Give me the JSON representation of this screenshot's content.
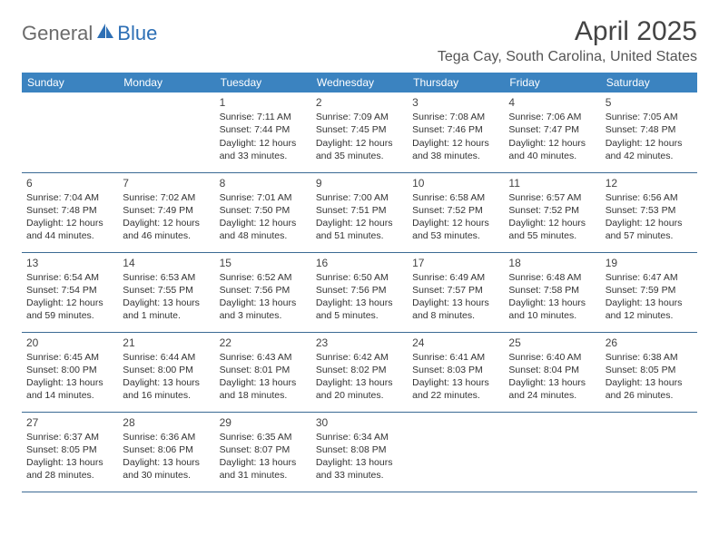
{
  "brand": {
    "text1": "General",
    "text2": "Blue"
  },
  "title": "April 2025",
  "location": "Tega Cay, South Carolina, United States",
  "colors": {
    "header_bg": "#3b83c0",
    "header_text": "#ffffff",
    "rule": "#3b6a94",
    "brand_gray": "#6b6b6b",
    "brand_blue": "#2d6fb5",
    "text": "#333333",
    "background": "#ffffff"
  },
  "typography": {
    "title_fontsize": 30,
    "location_fontsize": 16,
    "dayheader_fontsize": 12,
    "daynum_fontsize": 12,
    "body_fontsize": 10.5,
    "font_family": "Arial"
  },
  "day_headers": [
    "Sunday",
    "Monday",
    "Tuesday",
    "Wednesday",
    "Thursday",
    "Friday",
    "Saturday"
  ],
  "weeks": [
    [
      null,
      null,
      {
        "n": "1",
        "sr": "Sunrise: 7:11 AM",
        "ss": "Sunset: 7:44 PM",
        "d1": "Daylight: 12 hours",
        "d2": "and 33 minutes."
      },
      {
        "n": "2",
        "sr": "Sunrise: 7:09 AM",
        "ss": "Sunset: 7:45 PM",
        "d1": "Daylight: 12 hours",
        "d2": "and 35 minutes."
      },
      {
        "n": "3",
        "sr": "Sunrise: 7:08 AM",
        "ss": "Sunset: 7:46 PM",
        "d1": "Daylight: 12 hours",
        "d2": "and 38 minutes."
      },
      {
        "n": "4",
        "sr": "Sunrise: 7:06 AM",
        "ss": "Sunset: 7:47 PM",
        "d1": "Daylight: 12 hours",
        "d2": "and 40 minutes."
      },
      {
        "n": "5",
        "sr": "Sunrise: 7:05 AM",
        "ss": "Sunset: 7:48 PM",
        "d1": "Daylight: 12 hours",
        "d2": "and 42 minutes."
      }
    ],
    [
      {
        "n": "6",
        "sr": "Sunrise: 7:04 AM",
        "ss": "Sunset: 7:48 PM",
        "d1": "Daylight: 12 hours",
        "d2": "and 44 minutes."
      },
      {
        "n": "7",
        "sr": "Sunrise: 7:02 AM",
        "ss": "Sunset: 7:49 PM",
        "d1": "Daylight: 12 hours",
        "d2": "and 46 minutes."
      },
      {
        "n": "8",
        "sr": "Sunrise: 7:01 AM",
        "ss": "Sunset: 7:50 PM",
        "d1": "Daylight: 12 hours",
        "d2": "and 48 minutes."
      },
      {
        "n": "9",
        "sr": "Sunrise: 7:00 AM",
        "ss": "Sunset: 7:51 PM",
        "d1": "Daylight: 12 hours",
        "d2": "and 51 minutes."
      },
      {
        "n": "10",
        "sr": "Sunrise: 6:58 AM",
        "ss": "Sunset: 7:52 PM",
        "d1": "Daylight: 12 hours",
        "d2": "and 53 minutes."
      },
      {
        "n": "11",
        "sr": "Sunrise: 6:57 AM",
        "ss": "Sunset: 7:52 PM",
        "d1": "Daylight: 12 hours",
        "d2": "and 55 minutes."
      },
      {
        "n": "12",
        "sr": "Sunrise: 6:56 AM",
        "ss": "Sunset: 7:53 PM",
        "d1": "Daylight: 12 hours",
        "d2": "and 57 minutes."
      }
    ],
    [
      {
        "n": "13",
        "sr": "Sunrise: 6:54 AM",
        "ss": "Sunset: 7:54 PM",
        "d1": "Daylight: 12 hours",
        "d2": "and 59 minutes."
      },
      {
        "n": "14",
        "sr": "Sunrise: 6:53 AM",
        "ss": "Sunset: 7:55 PM",
        "d1": "Daylight: 13 hours",
        "d2": "and 1 minute."
      },
      {
        "n": "15",
        "sr": "Sunrise: 6:52 AM",
        "ss": "Sunset: 7:56 PM",
        "d1": "Daylight: 13 hours",
        "d2": "and 3 minutes."
      },
      {
        "n": "16",
        "sr": "Sunrise: 6:50 AM",
        "ss": "Sunset: 7:56 PM",
        "d1": "Daylight: 13 hours",
        "d2": "and 5 minutes."
      },
      {
        "n": "17",
        "sr": "Sunrise: 6:49 AM",
        "ss": "Sunset: 7:57 PM",
        "d1": "Daylight: 13 hours",
        "d2": "and 8 minutes."
      },
      {
        "n": "18",
        "sr": "Sunrise: 6:48 AM",
        "ss": "Sunset: 7:58 PM",
        "d1": "Daylight: 13 hours",
        "d2": "and 10 minutes."
      },
      {
        "n": "19",
        "sr": "Sunrise: 6:47 AM",
        "ss": "Sunset: 7:59 PM",
        "d1": "Daylight: 13 hours",
        "d2": "and 12 minutes."
      }
    ],
    [
      {
        "n": "20",
        "sr": "Sunrise: 6:45 AM",
        "ss": "Sunset: 8:00 PM",
        "d1": "Daylight: 13 hours",
        "d2": "and 14 minutes."
      },
      {
        "n": "21",
        "sr": "Sunrise: 6:44 AM",
        "ss": "Sunset: 8:00 PM",
        "d1": "Daylight: 13 hours",
        "d2": "and 16 minutes."
      },
      {
        "n": "22",
        "sr": "Sunrise: 6:43 AM",
        "ss": "Sunset: 8:01 PM",
        "d1": "Daylight: 13 hours",
        "d2": "and 18 minutes."
      },
      {
        "n": "23",
        "sr": "Sunrise: 6:42 AM",
        "ss": "Sunset: 8:02 PM",
        "d1": "Daylight: 13 hours",
        "d2": "and 20 minutes."
      },
      {
        "n": "24",
        "sr": "Sunrise: 6:41 AM",
        "ss": "Sunset: 8:03 PM",
        "d1": "Daylight: 13 hours",
        "d2": "and 22 minutes."
      },
      {
        "n": "25",
        "sr": "Sunrise: 6:40 AM",
        "ss": "Sunset: 8:04 PM",
        "d1": "Daylight: 13 hours",
        "d2": "and 24 minutes."
      },
      {
        "n": "26",
        "sr": "Sunrise: 6:38 AM",
        "ss": "Sunset: 8:05 PM",
        "d1": "Daylight: 13 hours",
        "d2": "and 26 minutes."
      }
    ],
    [
      {
        "n": "27",
        "sr": "Sunrise: 6:37 AM",
        "ss": "Sunset: 8:05 PM",
        "d1": "Daylight: 13 hours",
        "d2": "and 28 minutes."
      },
      {
        "n": "28",
        "sr": "Sunrise: 6:36 AM",
        "ss": "Sunset: 8:06 PM",
        "d1": "Daylight: 13 hours",
        "d2": "and 30 minutes."
      },
      {
        "n": "29",
        "sr": "Sunrise: 6:35 AM",
        "ss": "Sunset: 8:07 PM",
        "d1": "Daylight: 13 hours",
        "d2": "and 31 minutes."
      },
      {
        "n": "30",
        "sr": "Sunrise: 6:34 AM",
        "ss": "Sunset: 8:08 PM",
        "d1": "Daylight: 13 hours",
        "d2": "and 33 minutes."
      },
      null,
      null,
      null
    ]
  ]
}
